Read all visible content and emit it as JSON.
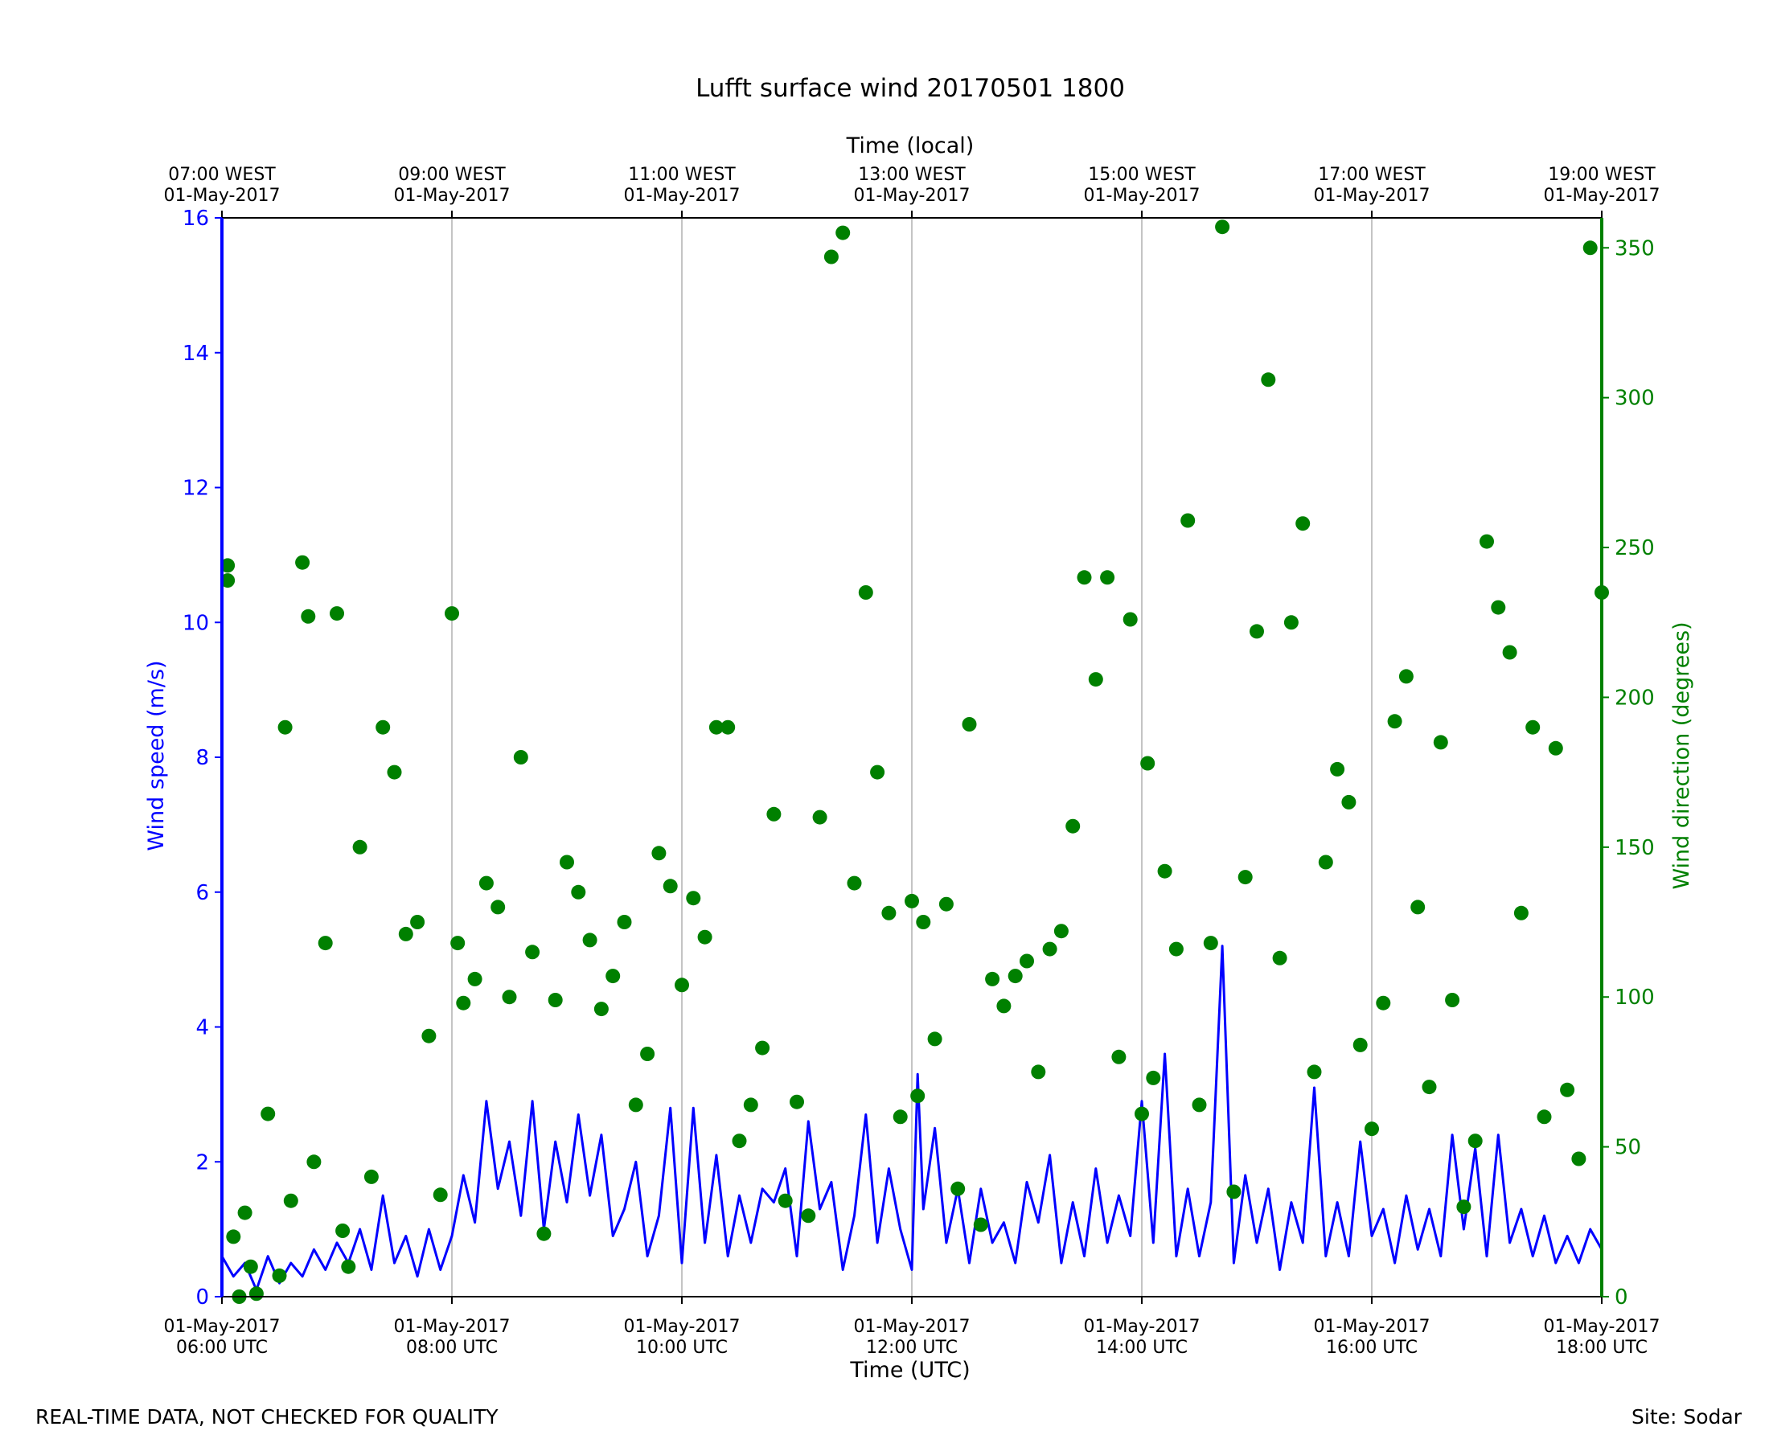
{
  "chart_data": {
    "type": "line+scatter",
    "title": "Lufft surface wind 20170501 1800",
    "xlabel": "Time (UTC)",
    "xlabel_top": "Time (local)",
    "ylabel": "Wind speed (m/s)",
    "ylabel_right": "Wind direction (degrees)",
    "xlim_hours_utc": [
      6,
      18
    ],
    "ylim": [
      0,
      16
    ],
    "ylim_right": [
      0,
      360
    ],
    "grid": "vertical",
    "colors": {
      "speed": "#0000ff",
      "direction": "#008000",
      "grid": "#b0b0b0"
    },
    "x_ticks_bottom": [
      {
        "hour": 6,
        "line1": "01-May-2017",
        "line2": "06:00 UTC"
      },
      {
        "hour": 8,
        "line1": "01-May-2017",
        "line2": "08:00 UTC"
      },
      {
        "hour": 10,
        "line1": "01-May-2017",
        "line2": "10:00 UTC"
      },
      {
        "hour": 12,
        "line1": "01-May-2017",
        "line2": "12:00 UTC"
      },
      {
        "hour": 14,
        "line1": "01-May-2017",
        "line2": "14:00 UTC"
      },
      {
        "hour": 16,
        "line1": "01-May-2017",
        "line2": "16:00 UTC"
      },
      {
        "hour": 18,
        "line1": "01-May-2017",
        "line2": "18:00 UTC"
      }
    ],
    "x_ticks_top": [
      {
        "hour": 6,
        "line1": "07:00 WEST",
        "line2": "01-May-2017"
      },
      {
        "hour": 8,
        "line1": "09:00 WEST",
        "line2": "01-May-2017"
      },
      {
        "hour": 10,
        "line1": "11:00 WEST",
        "line2": "01-May-2017"
      },
      {
        "hour": 12,
        "line1": "13:00 WEST",
        "line2": "01-May-2017"
      },
      {
        "hour": 14,
        "line1": "15:00 WEST",
        "line2": "01-May-2017"
      },
      {
        "hour": 16,
        "line1": "17:00 WEST",
        "line2": "01-May-2017"
      },
      {
        "hour": 18,
        "line1": "19:00 WEST",
        "line2": "01-May-2017"
      }
    ],
    "y_ticks_left": [
      0,
      2,
      4,
      6,
      8,
      10,
      12,
      14,
      16
    ],
    "y_ticks_right": [
      0,
      50,
      100,
      150,
      200,
      250,
      300,
      350
    ],
    "series": [
      {
        "name": "Wind speed",
        "kind": "line",
        "points": [
          [
            6.0,
            0.6
          ],
          [
            6.1,
            0.3
          ],
          [
            6.2,
            0.5
          ],
          [
            6.3,
            0.1
          ],
          [
            6.4,
            0.6
          ],
          [
            6.5,
            0.2
          ],
          [
            6.6,
            0.5
          ],
          [
            6.7,
            0.3
          ],
          [
            6.8,
            0.7
          ],
          [
            6.9,
            0.4
          ],
          [
            7.0,
            0.8
          ],
          [
            7.1,
            0.5
          ],
          [
            7.2,
            1.0
          ],
          [
            7.3,
            0.4
          ],
          [
            7.4,
            1.5
          ],
          [
            7.5,
            0.5
          ],
          [
            7.6,
            0.9
          ],
          [
            7.7,
            0.3
          ],
          [
            7.8,
            1.0
          ],
          [
            7.9,
            0.4
          ],
          [
            8.0,
            0.9
          ],
          [
            8.1,
            1.8
          ],
          [
            8.2,
            1.1
          ],
          [
            8.3,
            2.9
          ],
          [
            8.4,
            1.6
          ],
          [
            8.5,
            2.3
          ],
          [
            8.6,
            1.2
          ],
          [
            8.7,
            2.9
          ],
          [
            8.8,
            1.0
          ],
          [
            8.9,
            2.3
          ],
          [
            9.0,
            1.4
          ],
          [
            9.1,
            2.7
          ],
          [
            9.2,
            1.5
          ],
          [
            9.3,
            2.4
          ],
          [
            9.4,
            0.9
          ],
          [
            9.5,
            1.3
          ],
          [
            9.6,
            2.0
          ],
          [
            9.7,
            0.6
          ],
          [
            9.8,
            1.2
          ],
          [
            9.9,
            2.8
          ],
          [
            10.0,
            0.5
          ],
          [
            10.1,
            2.8
          ],
          [
            10.2,
            0.8
          ],
          [
            10.3,
            2.1
          ],
          [
            10.4,
            0.6
          ],
          [
            10.5,
            1.5
          ],
          [
            10.6,
            0.8
          ],
          [
            10.7,
            1.6
          ],
          [
            10.8,
            1.4
          ],
          [
            10.9,
            1.9
          ],
          [
            11.0,
            0.6
          ],
          [
            11.1,
            2.6
          ],
          [
            11.2,
            1.3
          ],
          [
            11.3,
            1.7
          ],
          [
            11.4,
            0.4
          ],
          [
            11.5,
            1.2
          ],
          [
            11.6,
            2.7
          ],
          [
            11.7,
            0.8
          ],
          [
            11.8,
            1.9
          ],
          [
            11.9,
            1.0
          ],
          [
            12.0,
            0.4
          ],
          [
            12.05,
            3.3
          ],
          [
            12.1,
            1.3
          ],
          [
            12.2,
            2.5
          ],
          [
            12.3,
            0.8
          ],
          [
            12.4,
            1.6
          ],
          [
            12.5,
            0.5
          ],
          [
            12.6,
            1.6
          ],
          [
            12.7,
            0.8
          ],
          [
            12.8,
            1.1
          ],
          [
            12.9,
            0.5
          ],
          [
            13.0,
            1.7
          ],
          [
            13.1,
            1.1
          ],
          [
            13.2,
            2.1
          ],
          [
            13.3,
            0.5
          ],
          [
            13.4,
            1.4
          ],
          [
            13.5,
            0.6
          ],
          [
            13.6,
            1.9
          ],
          [
            13.7,
            0.8
          ],
          [
            13.8,
            1.5
          ],
          [
            13.9,
            0.9
          ],
          [
            14.0,
            2.9
          ],
          [
            14.1,
            0.8
          ],
          [
            14.2,
            3.6
          ],
          [
            14.3,
            0.6
          ],
          [
            14.4,
            1.6
          ],
          [
            14.5,
            0.6
          ],
          [
            14.6,
            1.4
          ],
          [
            14.7,
            5.2
          ],
          [
            14.8,
            0.5
          ],
          [
            14.9,
            1.8
          ],
          [
            15.0,
            0.8
          ],
          [
            15.1,
            1.6
          ],
          [
            15.2,
            0.4
          ],
          [
            15.3,
            1.4
          ],
          [
            15.4,
            0.8
          ],
          [
            15.5,
            3.1
          ],
          [
            15.6,
            0.6
          ],
          [
            15.7,
            1.4
          ],
          [
            15.8,
            0.6
          ],
          [
            15.9,
            2.3
          ],
          [
            16.0,
            0.9
          ],
          [
            16.1,
            1.3
          ],
          [
            16.2,
            0.5
          ],
          [
            16.3,
            1.5
          ],
          [
            16.4,
            0.7
          ],
          [
            16.5,
            1.3
          ],
          [
            16.6,
            0.6
          ],
          [
            16.7,
            2.4
          ],
          [
            16.8,
            1.0
          ],
          [
            16.9,
            2.2
          ],
          [
            17.0,
            0.6
          ],
          [
            17.1,
            2.4
          ],
          [
            17.2,
            0.8
          ],
          [
            17.3,
            1.3
          ],
          [
            17.4,
            0.6
          ],
          [
            17.5,
            1.2
          ],
          [
            17.6,
            0.5
          ],
          [
            17.7,
            0.9
          ],
          [
            17.8,
            0.5
          ],
          [
            17.9,
            1.0
          ],
          [
            18.0,
            0.7
          ]
        ]
      },
      {
        "name": "Wind direction",
        "kind": "scatter",
        "points": [
          [
            6.05,
            244
          ],
          [
            6.05,
            239
          ],
          [
            6.1,
            20
          ],
          [
            6.15,
            0
          ],
          [
            6.2,
            28
          ],
          [
            6.25,
            10
          ],
          [
            6.3,
            1
          ],
          [
            6.4,
            61
          ],
          [
            6.5,
            7
          ],
          [
            6.55,
            190
          ],
          [
            6.6,
            32
          ],
          [
            6.7,
            245
          ],
          [
            6.75,
            227
          ],
          [
            6.8,
            45
          ],
          [
            6.9,
            118
          ],
          [
            7.0,
            228
          ],
          [
            7.05,
            22
          ],
          [
            7.1,
            10
          ],
          [
            7.2,
            150
          ],
          [
            7.3,
            40
          ],
          [
            7.4,
            190
          ],
          [
            7.5,
            175
          ],
          [
            7.6,
            121
          ],
          [
            7.7,
            125
          ],
          [
            7.8,
            87
          ],
          [
            7.9,
            34
          ],
          [
            8.0,
            228
          ],
          [
            8.05,
            118
          ],
          [
            8.1,
            98
          ],
          [
            8.2,
            106
          ],
          [
            8.3,
            138
          ],
          [
            8.4,
            130
          ],
          [
            8.5,
            100
          ],
          [
            8.6,
            180
          ],
          [
            8.7,
            115
          ],
          [
            8.8,
            21
          ],
          [
            8.9,
            99
          ],
          [
            9.0,
            145
          ],
          [
            9.1,
            135
          ],
          [
            9.2,
            119
          ],
          [
            9.3,
            96
          ],
          [
            9.4,
            107
          ],
          [
            9.5,
            125
          ],
          [
            9.6,
            64
          ],
          [
            9.7,
            81
          ],
          [
            9.8,
            148
          ],
          [
            9.9,
            137
          ],
          [
            10.0,
            104
          ],
          [
            10.1,
            133
          ],
          [
            10.2,
            120
          ],
          [
            10.3,
            190
          ],
          [
            10.4,
            190
          ],
          [
            10.5,
            52
          ],
          [
            10.6,
            64
          ],
          [
            10.7,
            83
          ],
          [
            10.8,
            161
          ],
          [
            10.9,
            32
          ],
          [
            11.0,
            65
          ],
          [
            11.1,
            27
          ],
          [
            11.2,
            160
          ],
          [
            11.3,
            347
          ],
          [
            11.4,
            355
          ],
          [
            11.5,
            138
          ],
          [
            11.6,
            235
          ],
          [
            11.7,
            175
          ],
          [
            11.8,
            128
          ],
          [
            11.9,
            60
          ],
          [
            12.0,
            132
          ],
          [
            12.05,
            67
          ],
          [
            12.1,
            125
          ],
          [
            12.2,
            86
          ],
          [
            12.3,
            131
          ],
          [
            12.4,
            36
          ],
          [
            12.5,
            191
          ],
          [
            12.6,
            24
          ],
          [
            12.7,
            106
          ],
          [
            12.8,
            97
          ],
          [
            12.9,
            107
          ],
          [
            13.0,
            112
          ],
          [
            13.1,
            75
          ],
          [
            13.2,
            116
          ],
          [
            13.3,
            122
          ],
          [
            13.4,
            157
          ],
          [
            13.5,
            240
          ],
          [
            13.6,
            206
          ],
          [
            13.7,
            240
          ],
          [
            13.8,
            80
          ],
          [
            13.9,
            226
          ],
          [
            14.0,
            61
          ],
          [
            14.05,
            178
          ],
          [
            14.1,
            73
          ],
          [
            14.2,
            142
          ],
          [
            14.3,
            116
          ],
          [
            14.4,
            259
          ],
          [
            14.5,
            64
          ],
          [
            14.6,
            118
          ],
          [
            14.7,
            357
          ],
          [
            14.8,
            35
          ],
          [
            14.9,
            140
          ],
          [
            15.0,
            222
          ],
          [
            15.1,
            306
          ],
          [
            15.2,
            113
          ],
          [
            15.3,
            225
          ],
          [
            15.4,
            258
          ],
          [
            15.5,
            75
          ],
          [
            15.6,
            145
          ],
          [
            15.7,
            176
          ],
          [
            15.8,
            165
          ],
          [
            15.9,
            84
          ],
          [
            16.0,
            56
          ],
          [
            16.1,
            98
          ],
          [
            16.2,
            192
          ],
          [
            16.3,
            207
          ],
          [
            16.4,
            130
          ],
          [
            16.5,
            70
          ],
          [
            16.6,
            185
          ],
          [
            16.7,
            99
          ],
          [
            16.8,
            30
          ],
          [
            16.9,
            52
          ],
          [
            17.0,
            252
          ],
          [
            17.1,
            230
          ],
          [
            17.2,
            215
          ],
          [
            17.3,
            128
          ],
          [
            17.4,
            190
          ],
          [
            17.5,
            60
          ],
          [
            17.6,
            183
          ],
          [
            17.7,
            69
          ],
          [
            17.8,
            46
          ],
          [
            17.9,
            350
          ],
          [
            18.0,
            235
          ]
        ]
      }
    ]
  },
  "footer": {
    "left": "REAL-TIME DATA, NOT CHECKED FOR QUALITY",
    "right": "Site: Sodar"
  }
}
